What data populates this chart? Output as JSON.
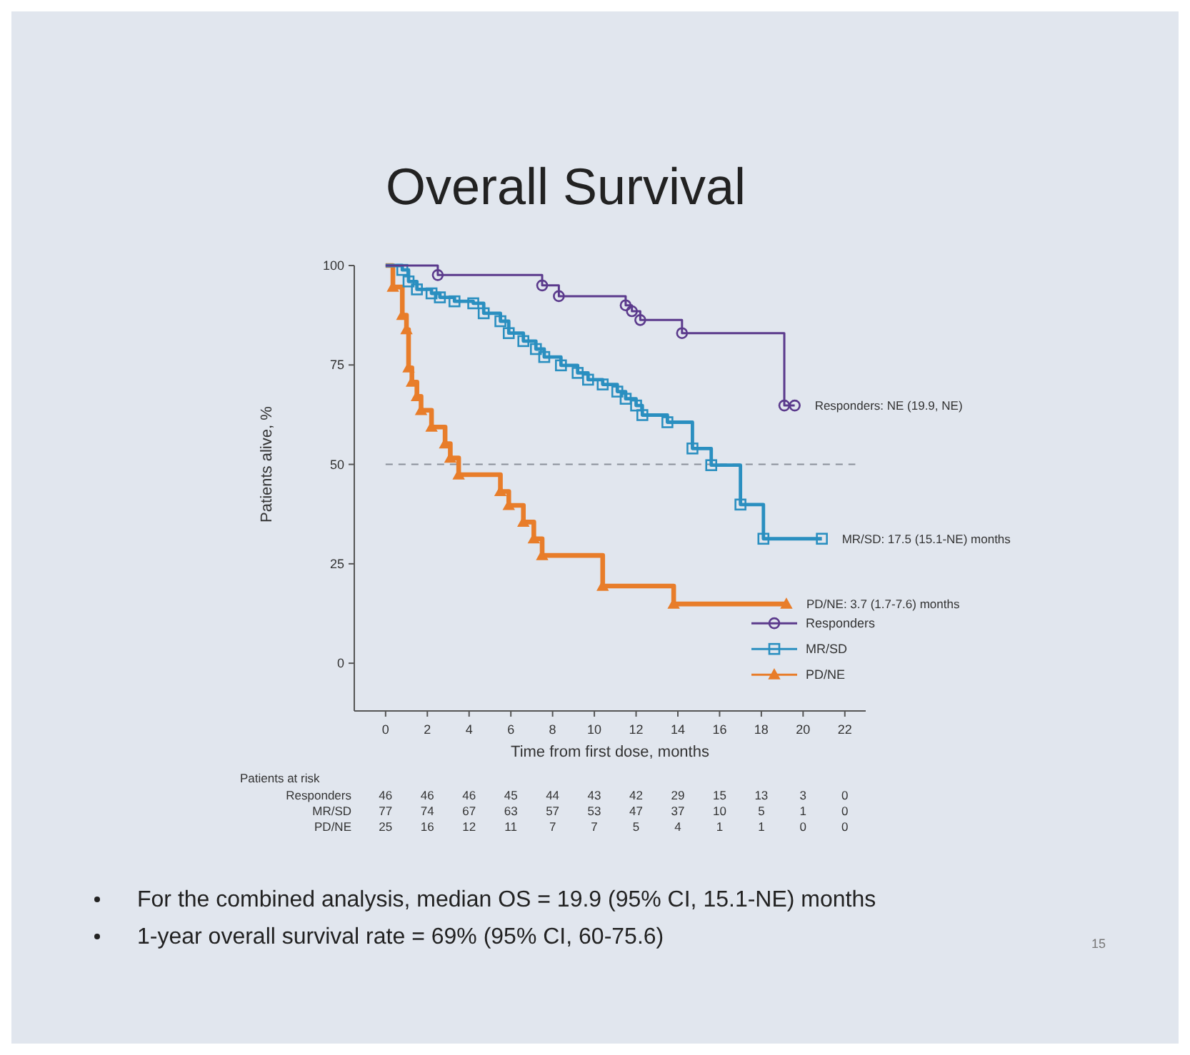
{
  "chart_data": {
    "type": "step",
    "title": "Overall Survival",
    "xlabel": "Time from first dose, months",
    "ylabel": "Patients alive, %",
    "xlim": [
      -1.5,
      23
    ],
    "xticks": [
      0,
      2,
      4,
      6,
      8,
      10,
      12,
      14,
      16,
      18,
      20,
      22
    ],
    "ylim": [
      -12,
      100
    ],
    "yticks": [
      0,
      25,
      50,
      75,
      100
    ],
    "grid": false,
    "legend": "bottom right",
    "line_style": "solid",
    "series": [
      {
        "name": "Responders",
        "color": "#5b3a8c",
        "marker": "circle",
        "x": [
          0,
          2.5,
          7.5,
          8.3,
          11.5,
          11.8,
          12.2,
          14.2,
          19.1,
          19.6
        ],
        "values": [
          100,
          97.6,
          95,
          92.3,
          90,
          88.5,
          86.3,
          83,
          64.8,
          64.8
        ]
      },
      {
        "name": "MR/SD",
        "color": "#2a8fc0",
        "marker": "square",
        "x": [
          0,
          0.8,
          1.1,
          1.5,
          2.2,
          2.6,
          3.3,
          4.2,
          4.7,
          5.5,
          5.9,
          6.6,
          7.2,
          7.6,
          8.4,
          9.2,
          9.7,
          10.4,
          11.1,
          11.5,
          12.0,
          12.3,
          13.5,
          14.7,
          15.6,
          17.0,
          18.1,
          20.9
        ],
        "values": [
          100,
          98.9,
          96,
          94,
          93,
          92,
          91,
          90.5,
          88,
          86,
          83,
          81,
          79,
          77,
          74.9,
          73,
          71.3,
          70.1,
          68.3,
          66.5,
          64.8,
          62.4,
          60.6,
          54,
          49.8,
          39.9,
          31.3,
          31.3
        ]
      },
      {
        "name": "PD/NE",
        "color": "#e87d2a",
        "marker": "triangle",
        "x": [
          0,
          0.35,
          0.8,
          1.0,
          1.1,
          1.26,
          1.5,
          1.7,
          2.2,
          2.85,
          3.1,
          3.5,
          5.5,
          5.9,
          6.6,
          7.1,
          7.5,
          10.4,
          13.8,
          19.2
        ],
        "values": [
          100,
          94.6,
          87.5,
          83.9,
          74.3,
          70.7,
          67.1,
          63.6,
          59.4,
          55.2,
          51.6,
          47.4,
          43.2,
          39.7,
          35.5,
          31.3,
          27.1,
          19.4,
          14.9,
          14.9
        ]
      }
    ],
    "ref_lines": [
      {
        "axis": "y",
        "value": 50,
        "color": "#8a8f99",
        "line_style": "dashed"
      }
    ],
    "annotations": [
      {
        "text": "Responders: NE (19.9, NE)",
        "x": 19.6,
        "y": 64.8
      },
      {
        "text": "MR/SD: 17.5 (15.1-NE) months",
        "x": 20.9,
        "y": 31.3
      },
      {
        "text": "PD/NE: 3.7 (1.7-7.6) months",
        "x": 19.2,
        "y": 14.9
      },
      "Patients at risk",
      "Responders\t46\t46\t46\t45\t44\t43\t42\t29\t15\t13\t3\t0",
      "MR/SD\t77\t74\t67\t63\t57\t53\t47\t37\t10\t5\t1\t0",
      "PD/NE\t25\t16\t12\t11\t7\t7\t5\t4\t1\t1\t0\t0",
      "For the combined analysis, median OS = 19.9 (95% CI, 15.1-NE) months",
      "1-year overall survival rate = 69% (95% CI, 60-75.6)",
      "15"
    ]
  }
}
